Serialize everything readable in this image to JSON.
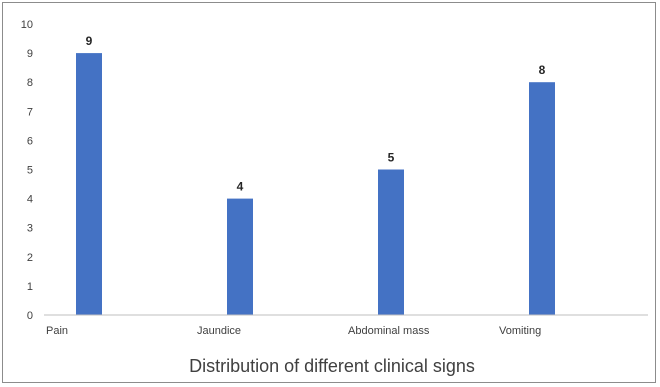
{
  "chart_data": {
    "type": "bar",
    "title": "Distribution of different clinical signs",
    "categories": [
      "Pain",
      "Jaundice",
      "Abdominal mass",
      "Vomiting"
    ],
    "values": [
      9,
      4,
      5,
      8
    ],
    "ylim": [
      0,
      10
    ],
    "yticks": [
      0,
      1,
      2,
      3,
      4,
      5,
      6,
      7,
      8,
      9,
      10
    ],
    "grid": false,
    "legend": "none",
    "data_labels": true,
    "bar_color": "#4472c4"
  }
}
